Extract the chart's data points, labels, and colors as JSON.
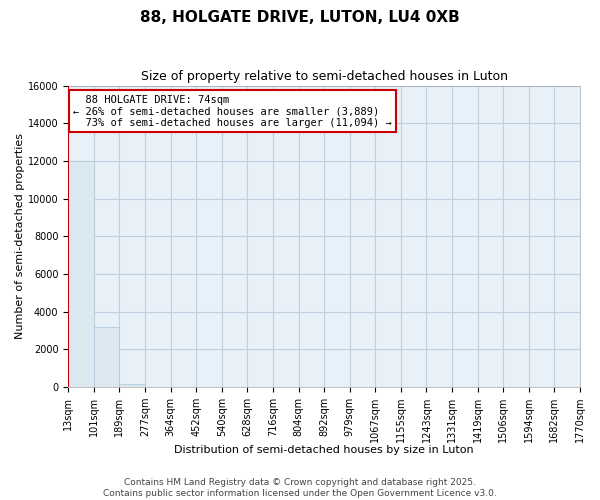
{
  "title": "88, HOLGATE DRIVE, LUTON, LU4 0XB",
  "subtitle": "Size of property relative to semi-detached houses in Luton",
  "xlabel": "Distribution of semi-detached houses by size in Luton",
  "ylabel": "Number of semi-detached properties",
  "bar_values": [
    12000,
    3200,
    150,
    0,
    0,
    0,
    0,
    0,
    0,
    0,
    0,
    0,
    0,
    0,
    0,
    0,
    0,
    0,
    0,
    0
  ],
  "bin_labels": [
    "13sqm",
    "101sqm",
    "189sqm",
    "277sqm",
    "364sqm",
    "452sqm",
    "540sqm",
    "628sqm",
    "716sqm",
    "804sqm",
    "892sqm",
    "979sqm",
    "1067sqm",
    "1155sqm",
    "1243sqm",
    "1331sqm",
    "1419sqm",
    "1506sqm",
    "1594sqm",
    "1682sqm",
    "1770sqm"
  ],
  "bar_color": "#dce8f0",
  "bar_edge_color": "#aac4d8",
  "plot_bg_color": "#e8f0f8",
  "grid_color": "#c0d0e0",
  "ylim": [
    0,
    16000
  ],
  "yticks": [
    0,
    2000,
    4000,
    6000,
    8000,
    10000,
    12000,
    14000,
    16000
  ],
  "property_size": 74,
  "property_label": "88 HOLGATE DRIVE: 74sqm",
  "pct_smaller": 26,
  "pct_smaller_count": 3889,
  "pct_larger": 73,
  "pct_larger_count": 11094,
  "annotation_box_color": "#ffffff",
  "annotation_box_edge": "#cc0000",
  "red_line_color": "#cc0000",
  "footer_line1": "Contains HM Land Registry data © Crown copyright and database right 2025.",
  "footer_line2": "Contains public sector information licensed under the Open Government Licence v3.0.",
  "title_fontsize": 11,
  "subtitle_fontsize": 9,
  "axis_label_fontsize": 8,
  "tick_fontsize": 7,
  "annotation_fontsize": 7.5,
  "footer_fontsize": 6.5
}
